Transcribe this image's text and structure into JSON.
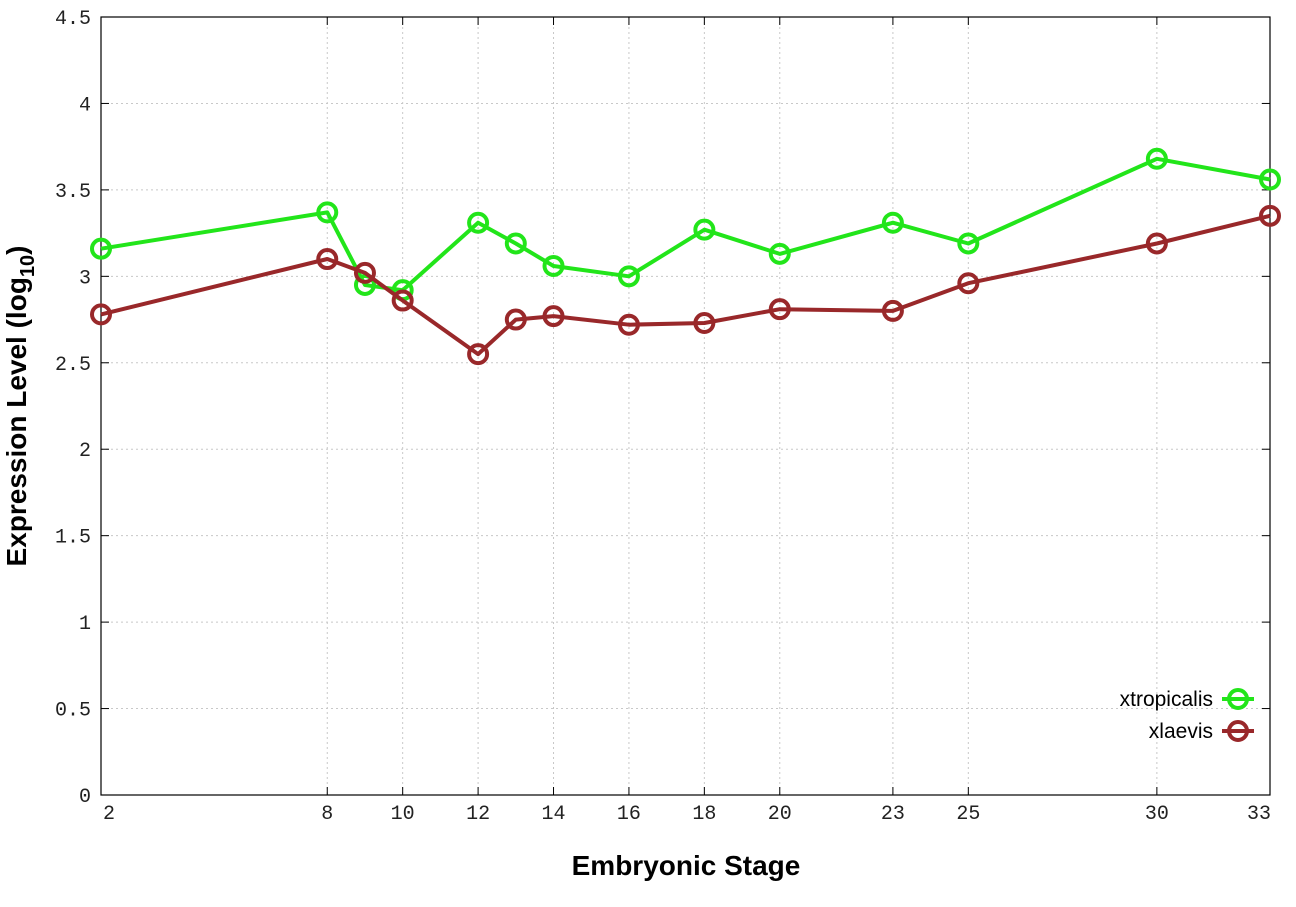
{
  "chart_data": {
    "type": "line",
    "xlabel": "Embryonic Stage",
    "ylabel_main": "Expression Level (log",
    "ylabel_sub": "10",
    "ylabel_close": ")",
    "x": [
      2,
      8,
      9,
      10,
      12,
      13,
      14,
      16,
      18,
      20,
      23,
      25,
      30,
      33
    ],
    "xticks": [
      2,
      8,
      10,
      12,
      14,
      16,
      18,
      20,
      23,
      25,
      30,
      33
    ],
    "xtick_labels": [
      "2",
      "8",
      "10",
      "12",
      "14",
      "16",
      "18",
      "20",
      "23",
      "25",
      "30",
      "33"
    ],
    "xlim": [
      2,
      33
    ],
    "yticks": [
      0,
      0.5,
      1,
      1.5,
      2,
      2.5,
      3,
      3.5,
      4,
      4.5
    ],
    "ytick_labels": [
      "0",
      "0.5",
      "1",
      "1.5",
      "2",
      "2.5",
      "3",
      "3.5",
      "4",
      "4.5"
    ],
    "ylim": [
      0,
      4.5
    ],
    "grid": true,
    "legend_position": "bottom-right",
    "series": [
      {
        "name": "xtropicalis",
        "color": "#22e51a",
        "values": [
          3.16,
          3.37,
          2.95,
          2.92,
          3.31,
          3.19,
          3.06,
          3.0,
          3.27,
          3.13,
          3.31,
          3.19,
          3.68,
          3.56
        ]
      },
      {
        "name": "xlaevis",
        "color": "#99282a",
        "values": [
          2.78,
          3.1,
          3.02,
          2.86,
          2.55,
          2.75,
          2.77,
          2.72,
          2.73,
          2.81,
          2.8,
          2.96,
          3.19,
          3.35
        ]
      }
    ]
  }
}
